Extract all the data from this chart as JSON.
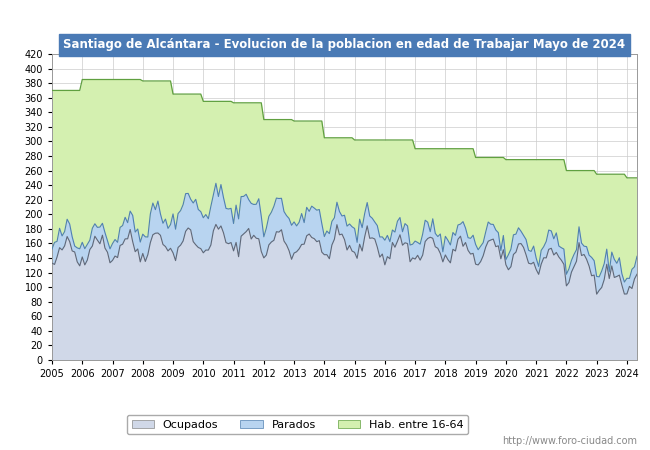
{
  "title": "Santiago de Alcántara - Evolucion de la poblacion en edad de Trabajar Mayo de 2024",
  "title_bg": "#4a7ab5",
  "title_color": "white",
  "ylim": [
    0,
    420
  ],
  "yticks": [
    0,
    20,
    40,
    60,
    80,
    100,
    120,
    140,
    160,
    180,
    200,
    220,
    240,
    260,
    280,
    300,
    320,
    340,
    360,
    380,
    400,
    420
  ],
  "watermark": "http://www.foro-ciudad.com",
  "legend_labels": [
    "Ocupados",
    "Parados",
    "Hab. entre 16-64"
  ],
  "ocupados_fill_color": "#d0d8e8",
  "parados_fill_color": "#b8d4f0",
  "hab_fill_color": "#d4f0b0",
  "ocupados_line_color": "#606878",
  "parados_line_color": "#5080b0",
  "hab_line_color": "#60a040",
  "legend_ocupados_color": "#d0d8e8",
  "legend_parados_color": "#b8d4f0",
  "legend_hab_color": "#d4f0b0"
}
